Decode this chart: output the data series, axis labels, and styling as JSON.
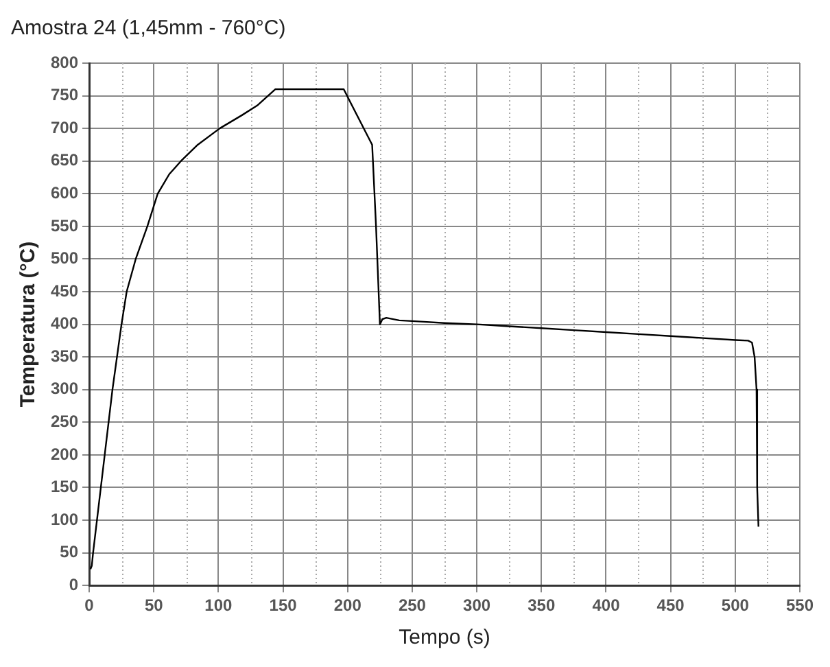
{
  "chart_data": {
    "type": "line",
    "title": "Amostra 24 (1,45mm - 760°C)",
    "xlabel": "Tempo (s)",
    "ylabel": "Temperatura (°C)",
    "series": [
      {
        "color": "#000000",
        "x": [
          1,
          2,
          3,
          6,
          12,
          18,
          25,
          29,
          36,
          45,
          53,
          62,
          71,
          84,
          101,
          118,
          130,
          144,
          197,
          219,
          222,
          224,
          225,
          227,
          230,
          240,
          250,
          275,
          300,
          325,
          350,
          375,
          400,
          425,
          450,
          475,
          500,
          510,
          513,
          515,
          516.5,
          517,
          518
        ],
        "values": [
          25,
          30,
          50,
          100,
          200,
          300,
          400,
          450,
          500,
          550,
          600,
          630,
          650,
          675,
          700,
          720,
          735,
          760,
          760,
          675,
          550,
          450,
          400,
          408,
          410,
          406,
          405,
          402,
          400,
          397,
          394,
          391,
          388,
          385,
          382,
          379,
          376,
          375,
          372,
          350,
          300,
          150,
          90
        ]
      }
    ],
    "xlim": [
      0,
      550
    ],
    "xticks": [
      0,
      50,
      100,
      150,
      200,
      250,
      300,
      350,
      400,
      450,
      500,
      550
    ],
    "ylim": [
      0,
      800
    ],
    "yticks": [
      0,
      50,
      100,
      150,
      200,
      250,
      300,
      350,
      400,
      450,
      500,
      550,
      600,
      650,
      700,
      750,
      800
    ],
    "grid": true,
    "legend": false,
    "marker": "none",
    "line_style": "solid"
  }
}
